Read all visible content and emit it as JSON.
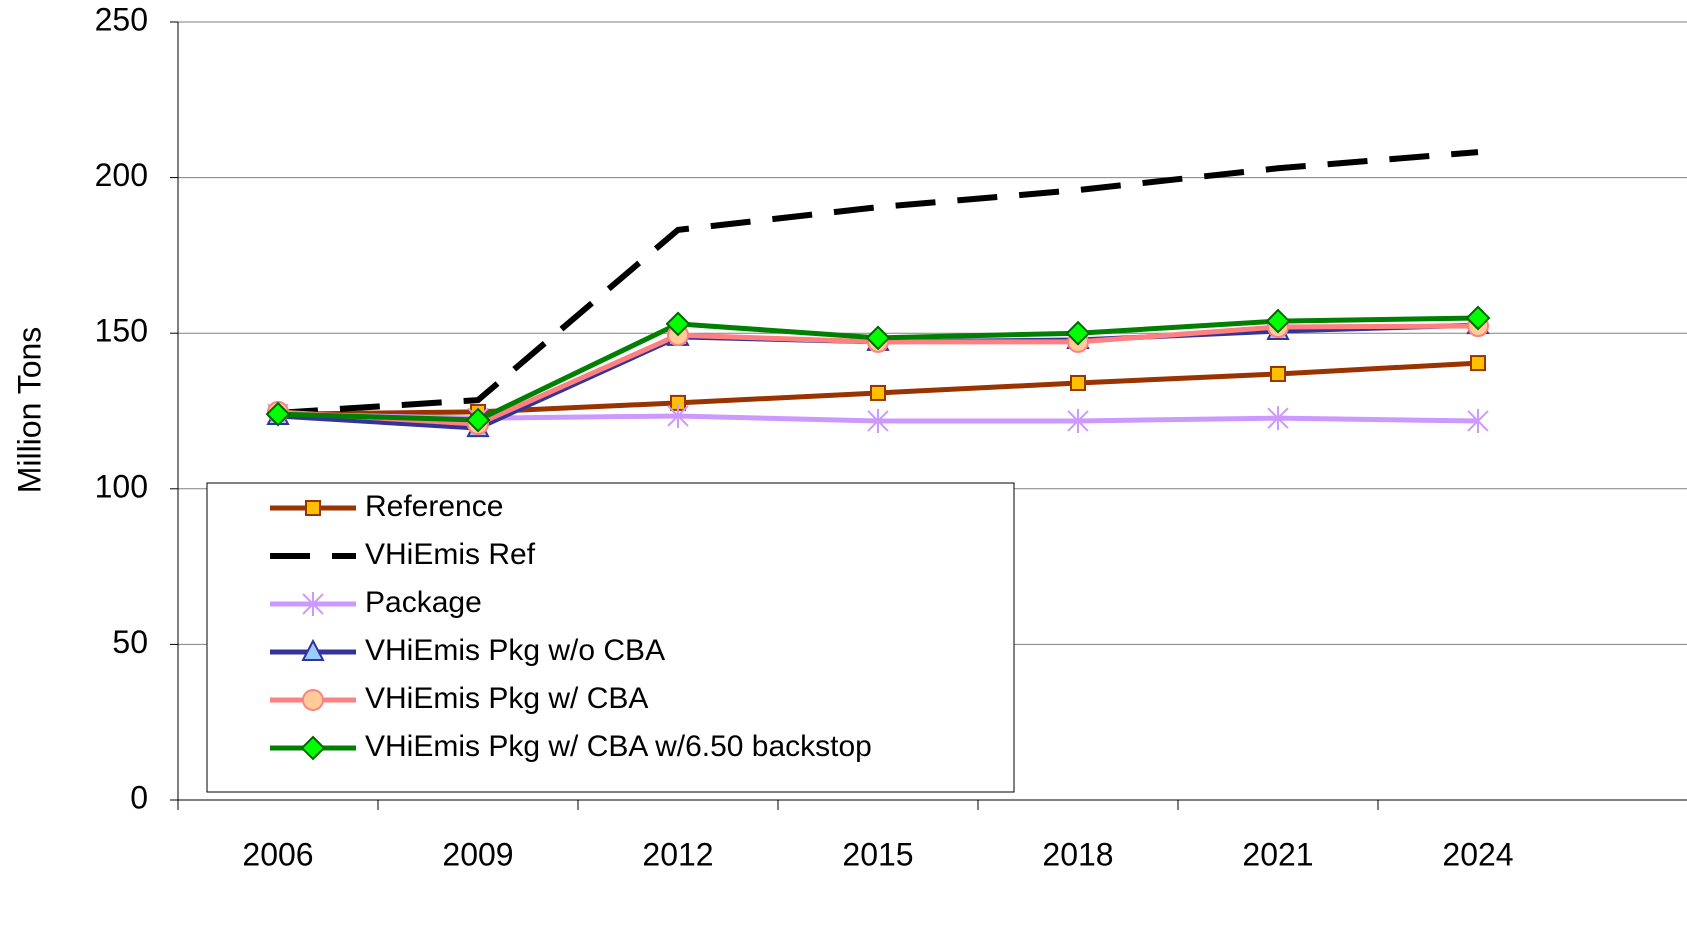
{
  "chart_data": {
    "type": "line",
    "y_label": "Million Tons",
    "categories": [
      "2006",
      "2009",
      "2012",
      "2015",
      "2018",
      "2021",
      "2024"
    ],
    "ylim": [
      0,
      250
    ],
    "yticks": [
      0,
      50,
      100,
      150,
      200,
      250
    ],
    "grid": true,
    "legend": "lower-left",
    "series": [
      {
        "name": "Reference",
        "color": "#993300",
        "marker": "square",
        "marker_fill": "#ffc000",
        "values": [
          124,
          124.7,
          127.6,
          130.8,
          134,
          136.9,
          140.4
        ]
      },
      {
        "name": "VHiEmis Ref",
        "color": "#000000",
        "dash": true,
        "values": [
          124.4,
          128.5,
          183.2,
          190.5,
          196,
          203,
          208.2
        ]
      },
      {
        "name": "Package",
        "color": "#cc99ff",
        "marker": "asterisk",
        "values": [
          124,
          122.7,
          123.4,
          121.8,
          121.8,
          122.7,
          121.8
        ]
      },
      {
        "name": "VHiEmis Pkg w/o CBA",
        "color": "#333399",
        "marker": "triangle",
        "marker_fill": "#99ccff",
        "values": [
          123.4,
          119.5,
          148.8,
          147.2,
          147.8,
          150.7,
          152.6
        ]
      },
      {
        "name": "VHiEmis Pkg w/ CBA",
        "color": "#ff8080",
        "marker": "circle",
        "marker_fill": "#ffcc99",
        "values": [
          124.7,
          120.8,
          149.4,
          147.2,
          147.2,
          152,
          152.3
        ]
      },
      {
        "name": "VHiEmis Pkg w/ CBA w/6.50 backstop",
        "color": "#008000",
        "marker": "diamond",
        "marker_fill": "#00ff00",
        "values": [
          124,
          122.1,
          153,
          148.5,
          150,
          153.9,
          154.9
        ]
      }
    ]
  }
}
